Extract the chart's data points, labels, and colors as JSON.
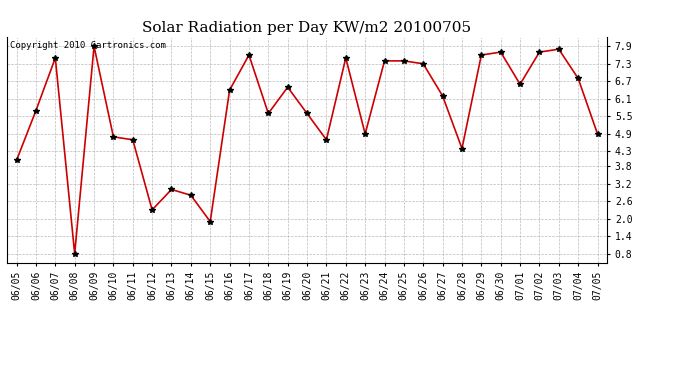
{
  "title": "Solar Radiation per Day KW/m2 20100705",
  "copyright": "Copyright 2010 Cartronics.com",
  "dates": [
    "06/05",
    "06/06",
    "06/07",
    "06/08",
    "06/09",
    "06/10",
    "06/11",
    "06/12",
    "06/13",
    "06/14",
    "06/15",
    "06/16",
    "06/17",
    "06/18",
    "06/19",
    "06/20",
    "06/21",
    "06/22",
    "06/23",
    "06/24",
    "06/25",
    "06/26",
    "06/27",
    "06/28",
    "06/29",
    "06/30",
    "07/01",
    "07/02",
    "07/03",
    "07/04",
    "07/05"
  ],
  "values": [
    4.0,
    5.7,
    7.5,
    0.8,
    7.9,
    4.8,
    4.7,
    2.3,
    3.0,
    2.8,
    1.9,
    6.4,
    7.6,
    5.6,
    6.5,
    5.6,
    4.7,
    7.5,
    4.9,
    7.4,
    7.4,
    7.3,
    6.2,
    4.4,
    7.6,
    7.7,
    6.6,
    7.7,
    7.8,
    6.8,
    4.9
  ],
  "line_color": "#cc0000",
  "marker": "*",
  "marker_color": "#000000",
  "bg_color": "#ffffff",
  "grid_color": "#aaaaaa",
  "ylim": [
    0.5,
    8.2
  ],
  "yticks": [
    7.9,
    7.3,
    6.7,
    6.1,
    5.5,
    4.9,
    4.3,
    3.8,
    3.2,
    2.6,
    2.0,
    1.4,
    0.8
  ],
  "title_fontsize": 11,
  "copyright_fontsize": 6.5,
  "tick_fontsize": 7,
  "ytick_fontsize": 7
}
